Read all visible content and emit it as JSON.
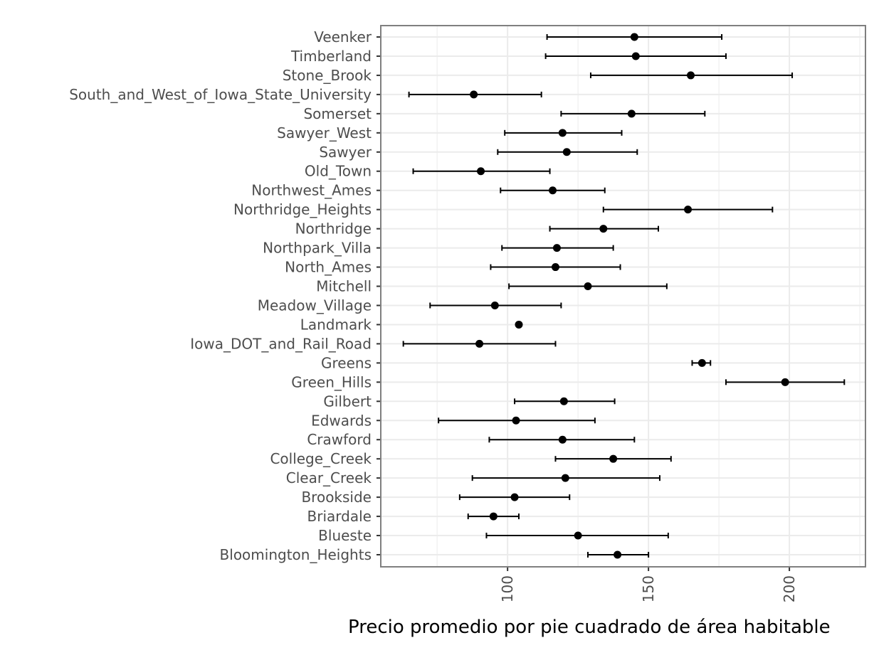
{
  "chart_data": {
    "type": "scatter",
    "title": "",
    "xlabel": "Precio  promedio por pie cuadrado de área habitable",
    "ylabel": "",
    "xlim": [
      55,
      227
    ],
    "xticks": [
      100,
      150,
      200
    ],
    "grid": true,
    "series": [
      {
        "values": [
          {
            "category": "Veenker",
            "mean": 145,
            "low": 114,
            "high": 176
          },
          {
            "category": "Timberland",
            "mean": 145.5,
            "low": 113.5,
            "high": 177.5
          },
          {
            "category": "Stone_Brook",
            "mean": 165,
            "low": 129.5,
            "high": 201
          },
          {
            "category": "South_and_West_of_Iowa_State_University",
            "mean": 88,
            "low": 65,
            "high": 112
          },
          {
            "category": "Somerset",
            "mean": 144,
            "low": 119,
            "high": 170
          },
          {
            "category": "Sawyer_West",
            "mean": 119.5,
            "low": 99,
            "high": 140.5
          },
          {
            "category": "Sawyer",
            "mean": 121,
            "low": 96.5,
            "high": 146
          },
          {
            "category": "Old_Town",
            "mean": 90.5,
            "low": 66.5,
            "high": 115
          },
          {
            "category": "Northwest_Ames",
            "mean": 116,
            "low": 97.5,
            "high": 134.5
          },
          {
            "category": "Northridge_Heights",
            "mean": 164,
            "low": 134,
            "high": 194
          },
          {
            "category": "Northridge",
            "mean": 134,
            "low": 115,
            "high": 153.5
          },
          {
            "category": "Northpark_Villa",
            "mean": 117.5,
            "low": 98,
            "high": 137.5
          },
          {
            "category": "North_Ames",
            "mean": 117,
            "low": 94,
            "high": 140
          },
          {
            "category": "Mitchell",
            "mean": 128.5,
            "low": 100.5,
            "high": 156.5
          },
          {
            "category": "Meadow_Village",
            "mean": 95.5,
            "low": 72.5,
            "high": 119
          },
          {
            "category": "Landmark",
            "mean": 104,
            "low": 104,
            "high": 104
          },
          {
            "category": "Iowa_DOT_and_Rail_Road",
            "mean": 90,
            "low": 63,
            "high": 117
          },
          {
            "category": "Greens",
            "mean": 169,
            "low": 165.5,
            "high": 172
          },
          {
            "category": "Green_Hills",
            "mean": 198.5,
            "low": 177.5,
            "high": 219.5
          },
          {
            "category": "Gilbert",
            "mean": 120,
            "low": 102.5,
            "high": 138
          },
          {
            "category": "Edwards",
            "mean": 103,
            "low": 75.5,
            "high": 131
          },
          {
            "category": "Crawford",
            "mean": 119.5,
            "low": 93.5,
            "high": 145
          },
          {
            "category": "College_Creek",
            "mean": 137.5,
            "low": 117,
            "high": 158
          },
          {
            "category": "Clear_Creek",
            "mean": 120.5,
            "low": 87.5,
            "high": 154
          },
          {
            "category": "Brookside",
            "mean": 102.5,
            "low": 83,
            "high": 122
          },
          {
            "category": "Briardale",
            "mean": 95,
            "low": 86,
            "high": 104
          },
          {
            "category": "Blueste",
            "mean": 125,
            "low": 92.5,
            "high": 157
          },
          {
            "category": "Bloomington_Heights",
            "mean": 139,
            "low": 128.5,
            "high": 150
          }
        ]
      }
    ]
  }
}
